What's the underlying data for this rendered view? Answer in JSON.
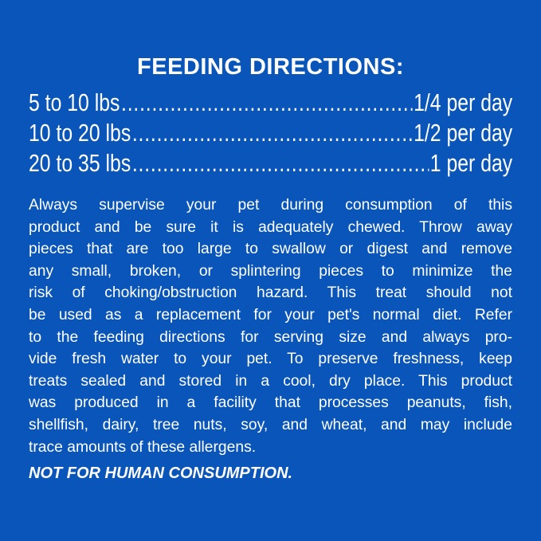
{
  "colors": {
    "background": "#0a55b9",
    "text": "#ffffff"
  },
  "title": "FEEDING DIRECTIONS:",
  "feeding_rows": [
    {
      "weight": "5 to 10 lbs",
      "amount": "1/4 per day"
    },
    {
      "weight": "10 to 20 lbs",
      "amount": "1/2 per day"
    },
    {
      "weight": "20 to 35 lbs",
      "amount": "1 per day"
    }
  ],
  "paragraph_lines": [
    "Always supervise your pet during consumption of this",
    "product and be sure it is adequately chewed. Throw away",
    "pieces that are too large to swallow or digest and remove",
    "any small, broken, or splintering pieces to minimize the",
    "risk of choking/obstruction hazard. This treat should not",
    "be used as a replacement for your pet's normal diet. Refer",
    "to the feeding directions for serving size and always pro-",
    "vide fresh water to your pet. To preserve freshness, keep",
    "treats sealed and stored in a cool, dry place. This product",
    "was produced in a facility that processes peanuts, fish,",
    "shellfish, dairy, tree nuts, soy, and wheat, and may include",
    "trace amounts of these allergens."
  ],
  "warning": "NOT FOR HUMAN CONSUMPTION."
}
